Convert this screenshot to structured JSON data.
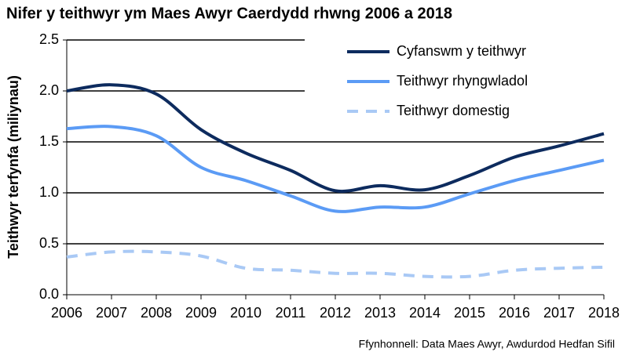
{
  "chart_data": {
    "type": "line",
    "title": "Nifer y teithwyr ym Maes Awyr Caerdydd rhwng 2006 a 2018",
    "y_label": "Teithwyr terfynfa (miliynau)",
    "source": "Ffynhonnell: Data Maes Awyr, Awdurdod Hedfan Sifil",
    "x": [
      2006,
      2007,
      2008,
      2009,
      2010,
      2011,
      2012,
      2013,
      2014,
      2015,
      2016,
      2017,
      2018
    ],
    "xlim": [
      2006,
      2018
    ],
    "xticks": [
      2006,
      2007,
      2008,
      2009,
      2010,
      2011,
      2012,
      2013,
      2014,
      2015,
      2016,
      2017,
      2018
    ],
    "ylim": [
      0,
      2.5
    ],
    "yticks": [
      {
        "value": 0,
        "label": "0.0"
      },
      0.5,
      {
        "value": 1,
        "label": "1.0"
      },
      1.5,
      {
        "value": 2,
        "label": "2.0"
      },
      2.5
    ],
    "grid": true,
    "legend": "top-right",
    "series": [
      {
        "name": "Cyfanswm y teithwyr",
        "color": "#0d2b5e",
        "dashed": false,
        "values": [
          2.0,
          2.06,
          1.97,
          1.62,
          1.39,
          1.22,
          1.02,
          1.07,
          1.03,
          1.17,
          1.35,
          1.46,
          1.58
        ]
      },
      {
        "name": "Teithwyr rhyngwladol",
        "color": "#5b9bf5",
        "dashed": false,
        "values": [
          1.63,
          1.65,
          1.56,
          1.25,
          1.12,
          0.97,
          0.82,
          0.86,
          0.86,
          0.99,
          1.12,
          1.22,
          1.32
        ]
      },
      {
        "name": "Teithwyr domestig",
        "color": "#a9c9f5",
        "dashed": true,
        "values": [
          0.37,
          0.42,
          0.42,
          0.38,
          0.26,
          0.24,
          0.21,
          0.21,
          0.18,
          0.18,
          0.24,
          0.26,
          0.27
        ]
      }
    ]
  }
}
